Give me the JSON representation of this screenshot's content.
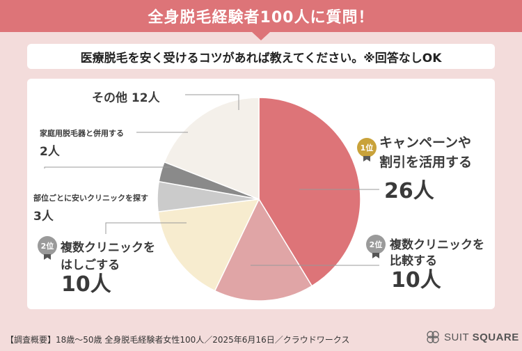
{
  "header": {
    "title": "全身脱毛経験者100人に質問！"
  },
  "question": {
    "text": "医療脱毛を安く受けるコツがあれば教えてください。※回答なしOK"
  },
  "chart_data": {
    "type": "pie",
    "total": 100,
    "slices": [
      {
        "id": "campaign",
        "label": "キャンペーンや割引を活用する",
        "value": 26,
        "color": "#dd7478",
        "rank": "1位",
        "rank_color": "#c9a23a"
      },
      {
        "id": "compare",
        "label": "複数クリニックを比較する",
        "value": 10,
        "color": "#e0a5a6",
        "rank": "2位",
        "rank_color": "#9a9a9a"
      },
      {
        "id": "hashigo",
        "label": "複数クリニックをはしごする",
        "value": 10,
        "color": "#f7eccf",
        "rank": "2位",
        "rank_color": "#9a9a9a"
      },
      {
        "id": "parts",
        "label": "部位ごとに安いクリニックを探す",
        "value": 3,
        "color": "#cbcbcb"
      },
      {
        "id": "home",
        "label": "家庭用脱毛器と併用する",
        "value": 2,
        "color": "#8a8a8a"
      },
      {
        "id": "other",
        "label": "その他",
        "value": 12,
        "color": "#f4f0ea"
      }
    ]
  },
  "labels": {
    "campaign": {
      "line1": "キャンペーンや",
      "line2": "割引を活用する",
      "count": "26人",
      "rank": "1位"
    },
    "compare": {
      "line1": "複数クリニックを",
      "line2": "比較する",
      "count": "10人",
      "rank": "2位"
    },
    "hashigo": {
      "line1": "複数クリニックを",
      "line2": "はしごする",
      "count": "10人",
      "rank": "2位"
    },
    "parts": {
      "text": "部位ごとに安いクリニックを探す",
      "count": "3人"
    },
    "home": {
      "text": "家庭用脱毛器と併用する",
      "count": "2人"
    },
    "other": {
      "text": "その他 12人"
    }
  },
  "footer": {
    "note": "【調査概要】18歳〜50歳 全身脱毛経験者女性100人／2025年6月16日／クラウドワークス",
    "brand_light": "SUIT",
    "brand_bold": "SQUARE"
  }
}
